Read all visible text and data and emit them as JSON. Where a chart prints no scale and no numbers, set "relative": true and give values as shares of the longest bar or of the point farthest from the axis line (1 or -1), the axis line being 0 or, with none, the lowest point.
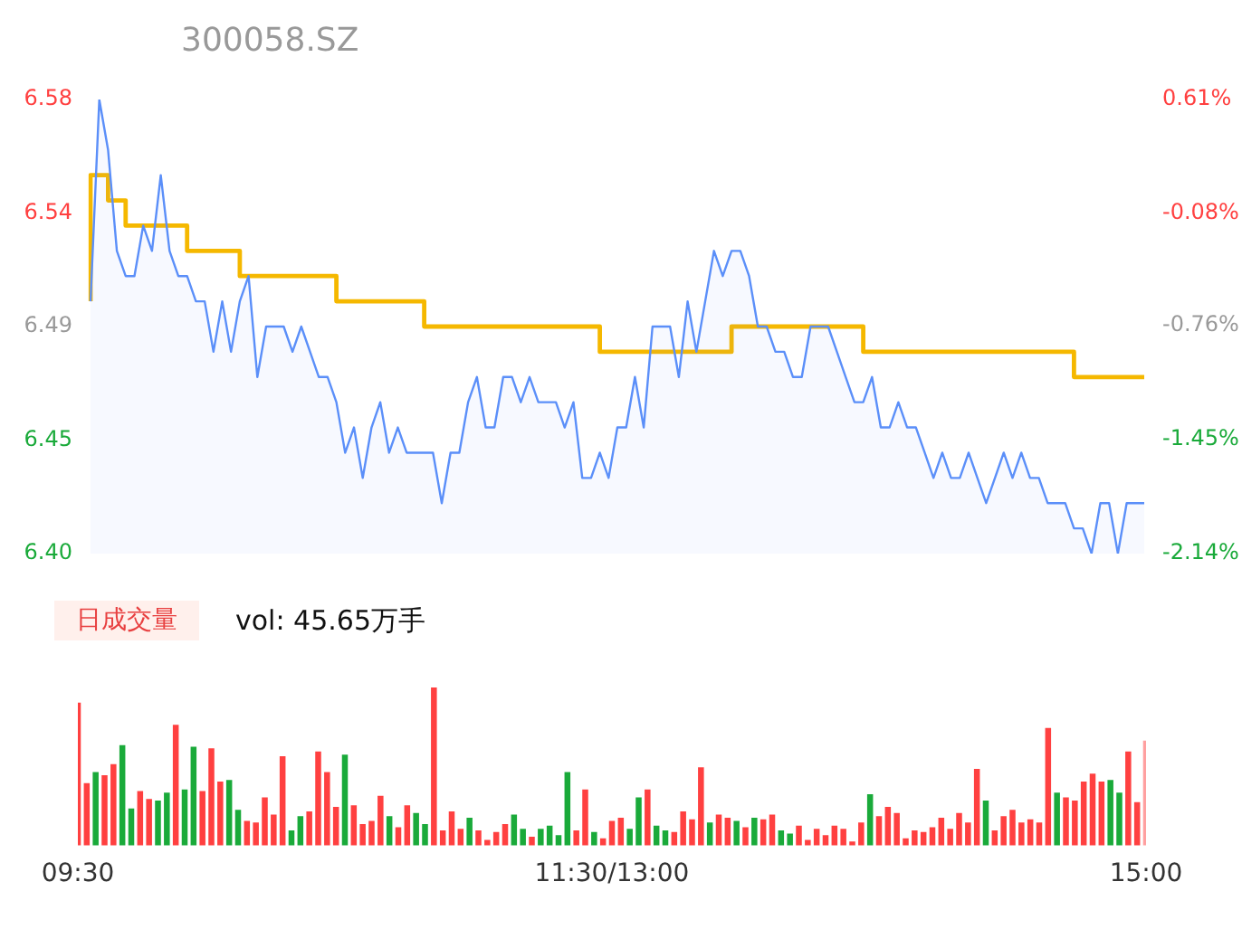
{
  "chart_data": [
    {
      "type": "line",
      "title": "300058.SZ",
      "categories": [
        null,
        null,
        null,
        null,
        null,
        null,
        null,
        null,
        null,
        null,
        null,
        null,
        null,
        null,
        null,
        null,
        null,
        null,
        null,
        null,
        null,
        null,
        null,
        null,
        null,
        null,
        null,
        null,
        null,
        null,
        null,
        null,
        null,
        null,
        null,
        null,
        null,
        null,
        null,
        null,
        null,
        null,
        null,
        null,
        null,
        null,
        null,
        null,
        null,
        null,
        null,
        null,
        null,
        null,
        null,
        null,
        null,
        null,
        null,
        null,
        null,
        null,
        null,
        null,
        null,
        null,
        null,
        null,
        null,
        null,
        null,
        null,
        null,
        null,
        null,
        null,
        null,
        null,
        null,
        null,
        null,
        null,
        null,
        null,
        null,
        null,
        null,
        null,
        null,
        null,
        null,
        null,
        null,
        null,
        null,
        null,
        null,
        null,
        null,
        null,
        null,
        null,
        null,
        null,
        null,
        null,
        null,
        null,
        null,
        null,
        null,
        null,
        null,
        null,
        null,
        null,
        null,
        null,
        null,
        null,
        null
      ],
      "ylim": [
        6.4,
        6.58
      ],
      "yticks": [
        {
          "value": 6.4,
          "label": "6.40"
        },
        {
          "value": 6.445,
          "label": "6.45"
        },
        6.49,
        {
          "value": 6.535,
          "label": "6.54"
        },
        6.58
      ],
      "y2lim": [
        -2.14,
        0.61
      ],
      "y2ticks": [
        {
          "value": -2.14,
          "label": "-2.14%"
        },
        {
          "value": -1.45,
          "label": "-1.45%"
        },
        {
          "value": -0.76,
          "label": "-0.76%"
        },
        {
          "value": -0.08,
          "label": "-0.08%"
        },
        {
          "value": 0.61,
          "label": "0.61%"
        }
      ],
      "tick_labels": "y",
      "marker": "none",
      "series": [
        {
          "type": "area",
          "color": "#5b8ff9",
          "values": [
            6.5,
            6.58,
            6.56,
            6.52,
            6.51,
            6.51,
            6.53,
            6.52,
            6.55,
            6.52,
            6.51,
            6.51,
            6.5,
            6.5,
            6.48,
            6.5,
            6.48,
            6.5,
            6.51,
            6.47,
            6.49,
            6.49,
            6.49,
            6.48,
            6.49,
            6.48,
            6.47,
            6.47,
            6.46,
            6.44,
            6.45,
            6.43,
            6.45,
            6.46,
            6.44,
            6.45,
            6.44,
            6.44,
            6.44,
            6.44,
            6.42,
            6.44,
            6.44,
            6.46,
            6.47,
            6.45,
            6.45,
            6.47,
            6.47,
            6.46,
            6.47,
            6.46,
            6.46,
            6.46,
            6.45,
            6.46,
            6.43,
            6.43,
            6.44,
            6.43,
            6.45,
            6.45,
            6.47,
            6.45,
            6.49,
            6.49,
            6.49,
            6.47,
            6.5,
            6.48,
            6.5,
            6.52,
            6.51,
            6.52,
            6.52,
            6.51,
            6.49,
            6.49,
            6.48,
            6.48,
            6.47,
            6.47,
            6.49,
            6.49,
            6.49,
            6.48,
            6.47,
            6.46,
            6.46,
            6.47,
            6.45,
            6.45,
            6.46,
            6.45,
            6.45,
            6.44,
            6.43,
            6.44,
            6.43,
            6.43,
            6.44,
            6.43,
            6.42,
            6.43,
            6.44,
            6.43,
            6.44,
            6.43,
            6.43,
            6.42,
            6.42,
            6.42,
            6.41,
            6.41,
            6.4,
            6.42,
            6.42,
            6.4,
            6.42,
            6.42,
            6.42
          ]
        },
        {
          "type": "step",
          "color": "#f5b800",
          "values": [
            6.5,
            6.55,
            6.55,
            6.54,
            6.54,
            6.53,
            6.53,
            6.53,
            6.53,
            6.53,
            6.53,
            6.53,
            6.52,
            6.52,
            6.52,
            6.52,
            6.52,
            6.52,
            6.51,
            6.51,
            6.51,
            6.51,
            6.51,
            6.51,
            6.51,
            6.51,
            6.51,
            6.51,
            6.51,
            6.5,
            6.5,
            6.5,
            6.5,
            6.5,
            6.5,
            6.5,
            6.5,
            6.5,
            6.5,
            6.49,
            6.49,
            6.49,
            6.49,
            6.49,
            6.49,
            6.49,
            6.49,
            6.49,
            6.49,
            6.49,
            6.49,
            6.49,
            6.49,
            6.49,
            6.49,
            6.49,
            6.49,
            6.49,
            6.49,
            6.48,
            6.48,
            6.48,
            6.48,
            6.48,
            6.48,
            6.48,
            6.48,
            6.48,
            6.48,
            6.48,
            6.48,
            6.48,
            6.48,
            6.48,
            6.49,
            6.49,
            6.49,
            6.49,
            6.49,
            6.49,
            6.49,
            6.49,
            6.49,
            6.49,
            6.49,
            6.49,
            6.49,
            6.49,
            6.49,
            6.48,
            6.48,
            6.48,
            6.48,
            6.48,
            6.48,
            6.48,
            6.48,
            6.48,
            6.48,
            6.48,
            6.48,
            6.48,
            6.48,
            6.48,
            6.48,
            6.48,
            6.48,
            6.48,
            6.48,
            6.48,
            6.48,
            6.48,
            6.48,
            6.47,
            6.47,
            6.47,
            6.47,
            6.47,
            6.47,
            6.47,
            6.47
          ]
        }
      ]
    },
    {
      "type": "bar",
      "relative": true,
      "annotations": [
        "日成交量",
        "vol: 45.65万手"
      ],
      "categories": [
        "09:30",
        null,
        null,
        null,
        null,
        null,
        null,
        null,
        null,
        null,
        null,
        null,
        null,
        null,
        null,
        null,
        null,
        null,
        null,
        null,
        null,
        null,
        null,
        null,
        null,
        null,
        null,
        null,
        null,
        null,
        null,
        null,
        null,
        null,
        null,
        null,
        null,
        null,
        null,
        null,
        null,
        null,
        null,
        null,
        null,
        null,
        null,
        null,
        null,
        null,
        null,
        null,
        null,
        null,
        null,
        null,
        null,
        null,
        null,
        null,
        "11:30/13:00",
        null,
        null,
        null,
        null,
        null,
        null,
        null,
        null,
        null,
        null,
        null,
        null,
        null,
        null,
        null,
        null,
        null,
        null,
        null,
        null,
        null,
        null,
        null,
        null,
        null,
        null,
        null,
        null,
        null,
        null,
        null,
        null,
        null,
        null,
        null,
        null,
        null,
        null,
        null,
        null,
        null,
        null,
        null,
        null,
        null,
        null,
        null,
        null,
        null,
        null,
        null,
        null,
        null,
        null,
        null,
        null,
        null,
        null,
        null,
        "15:00"
      ],
      "values": [
        0.9,
        0.39,
        0.46,
        0.44,
        0.51,
        0.63,
        0.23,
        0.34,
        0.29,
        0.28,
        0.33,
        0.76,
        0.35,
        0.62,
        0.34,
        0.61,
        0.4,
        0.41,
        0.22,
        0.15,
        0.14,
        0.3,
        0.19,
        0.56,
        0.09,
        0.18,
        0.21,
        0.59,
        0.46,
        0.24,
        0.57,
        0.25,
        0.13,
        0.15,
        0.31,
        0.18,
        0.11,
        0.25,
        0.2,
        0.13,
        1.0,
        0.09,
        0.21,
        0.1,
        0.17,
        0.09,
        0.03,
        0.08,
        0.13,
        0.19,
        0.1,
        0.05,
        0.1,
        0.12,
        0.06,
        0.46,
        0.09,
        0.35,
        0.08,
        0.04,
        0.15,
        0.17,
        0.1,
        0.3,
        0.35,
        0.12,
        0.09,
        0.08,
        0.21,
        0.16,
        0.49,
        0.14,
        0.19,
        0.17,
        0.15,
        0.11,
        0.17,
        0.16,
        0.19,
        0.09,
        0.07,
        0.12,
        0.03,
        0.1,
        0.06,
        0.12,
        0.1,
        0.02,
        0.14,
        0.32,
        0.18,
        0.24,
        0.2,
        0.04,
        0.09,
        0.08,
        0.11,
        0.17,
        0.1,
        0.2,
        0.14,
        0.48,
        0.28,
        0.09,
        0.18,
        0.22,
        0.14,
        0.16,
        0.14,
        0.74,
        0.33,
        0.3,
        0.28,
        0.4,
        0.45,
        0.4,
        0.41,
        0.33,
        0.59,
        0.27,
        0.66
      ],
      "colors": [
        "#ff4040",
        "#ff4040",
        "#1aaa3a",
        "#ff4040",
        "#ff4040",
        "#1aaa3a",
        "#1aaa3a",
        "#ff4040",
        "#ff4040",
        "#1aaa3a",
        "#1aaa3a",
        "#ff4040",
        "#1aaa3a",
        "#1aaa3a",
        "#ff4040",
        "#ff4040",
        "#ff4040",
        "#1aaa3a",
        "#1aaa3a",
        "#ff4040",
        "#ff4040",
        "#ff4040",
        "#ff4040",
        "#ff4040",
        "#1aaa3a",
        "#1aaa3a",
        "#ff4040",
        "#ff4040",
        "#ff4040",
        "#ff4040",
        "#1aaa3a",
        "#ff4040",
        "#ff4040",
        "#ff4040",
        "#ff4040",
        "#1aaa3a",
        "#ff4040",
        "#ff4040",
        "#1aaa3a",
        "#1aaa3a",
        "#ff4040",
        "#ff4040",
        "#ff4040",
        "#ff4040",
        "#1aaa3a",
        "#ff4040",
        "#ff4040",
        "#ff4040",
        "#ff4040",
        "#1aaa3a",
        "#1aaa3a",
        "#ff4040",
        "#1aaa3a",
        "#1aaa3a",
        "#1aaa3a",
        "#1aaa3a",
        "#ff4040",
        "#ff4040",
        "#1aaa3a",
        "#ff4040",
        "#ff4040",
        "#ff4040",
        "#1aaa3a",
        "#1aaa3a",
        "#ff4040",
        "#1aaa3a",
        "#1aaa3a",
        "#ff4040",
        "#ff4040",
        "#ff4040",
        "#ff4040",
        "#1aaa3a",
        "#ff4040",
        "#ff4040",
        "#1aaa3a",
        "#ff4040",
        "#1aaa3a",
        "#ff4040",
        "#ff4040",
        "#1aaa3a",
        "#1aaa3a",
        "#ff4040",
        "#ff4040",
        "#ff4040",
        "#ff4040",
        "#ff4040",
        "#ff4040",
        "#ff4040",
        "#ff4040",
        "#1aaa3a",
        "#ff4040",
        "#ff4040",
        "#ff4040",
        "#ff4040",
        "#ff4040",
        "#ff4040",
        "#ff4040",
        "#ff4040",
        "#ff4040",
        "#ff4040",
        "#ff4040",
        "#ff4040",
        "#1aaa3a",
        "#ff4040",
        "#ff4040",
        "#ff4040",
        "#ff4040",
        "#ff4040",
        "#ff4040",
        "#ff4040",
        "#1aaa3a",
        "#ff4040",
        "#ff4040",
        "#ff4040",
        "#ff4040",
        "#ff4040",
        "#1aaa3a",
        "#1aaa3a",
        "#ff4040",
        "#ff4040",
        "#ffa0a0"
      ]
    }
  ]
}
